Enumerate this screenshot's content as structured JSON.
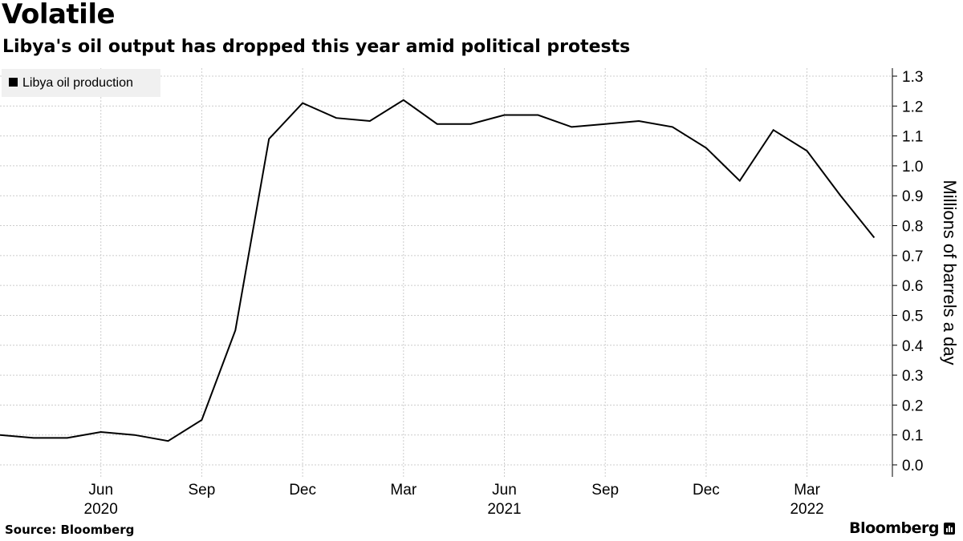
{
  "header": {
    "title": "Volatile",
    "subtitle": "Libya's oil output has dropped this year amid political protests"
  },
  "footer": {
    "source": "Source: Bloomberg",
    "brand": "Bloomberg"
  },
  "colors": {
    "line": "#000000",
    "grid": "#cccccc",
    "legend_bg": "#f0f0f0"
  },
  "chart_data": {
    "type": "line",
    "title": "Volatile",
    "subtitle": "Libya's oil output has dropped this year amid political protests",
    "ylabel": "Millions of barrels a day",
    "ylim": [
      0,
      1.3
    ],
    "y_ticks": [
      "0.0",
      "0.1",
      "0.2",
      "0.3",
      "0.4",
      "0.5",
      "0.6",
      "0.7",
      "0.8",
      "0.9",
      "1.0",
      "1.1",
      "1.2",
      "1.3"
    ],
    "x_ticks": [
      {
        "date": "2020-06",
        "label": "Jun",
        "year": "2020"
      },
      {
        "date": "2020-09",
        "label": "Sep",
        "year": ""
      },
      {
        "date": "2020-12",
        "label": "Dec",
        "year": ""
      },
      {
        "date": "2021-03",
        "label": "Mar",
        "year": ""
      },
      {
        "date": "2021-06",
        "label": "Jun",
        "year": "2021"
      },
      {
        "date": "2021-09",
        "label": "Sep",
        "year": ""
      },
      {
        "date": "2021-12",
        "label": "Dec",
        "year": ""
      },
      {
        "date": "2022-03",
        "label": "Mar",
        "year": "2022"
      }
    ],
    "grid": true,
    "legend_position": "top-left",
    "series": [
      {
        "name": "Libya oil production",
        "x": [
          "2020-03",
          "2020-04",
          "2020-05",
          "2020-06",
          "2020-07",
          "2020-08",
          "2020-09",
          "2020-10",
          "2020-11",
          "2020-12",
          "2021-01",
          "2021-02",
          "2021-03",
          "2021-04",
          "2021-05",
          "2021-06",
          "2021-07",
          "2021-08",
          "2021-09",
          "2021-10",
          "2021-11",
          "2021-12",
          "2022-01",
          "2022-02",
          "2022-03",
          "2022-04",
          "2022-05"
        ],
        "values": [
          0.1,
          0.09,
          0.09,
          0.11,
          0.1,
          0.08,
          0.15,
          0.45,
          1.09,
          1.21,
          1.16,
          1.15,
          1.22,
          1.14,
          1.14,
          1.17,
          1.17,
          1.13,
          1.14,
          1.15,
          1.13,
          1.06,
          0.95,
          1.12,
          1.05,
          0.9,
          0.76
        ]
      }
    ]
  }
}
